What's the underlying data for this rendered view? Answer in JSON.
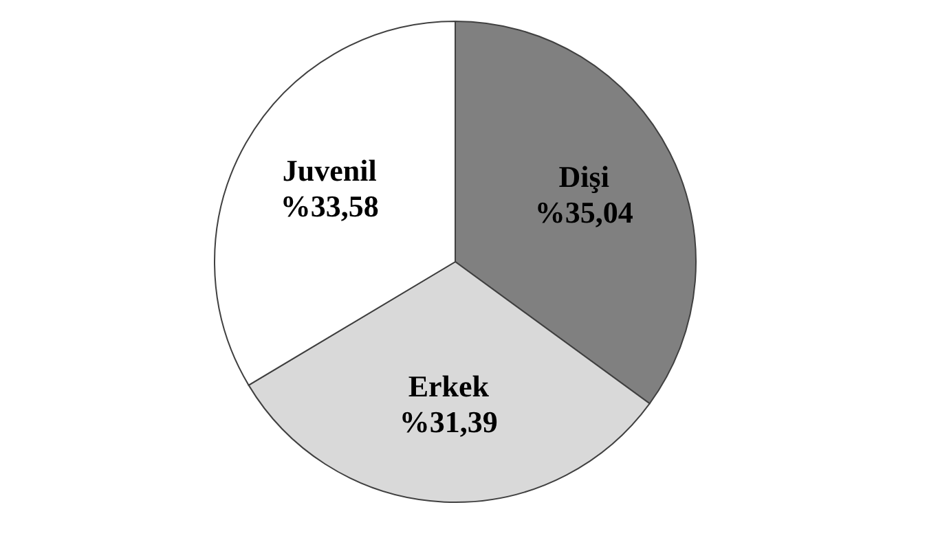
{
  "chart_data": {
    "type": "pie",
    "categories": [
      "Dişi",
      "Erkek",
      "Juvenil"
    ],
    "values": [
      35.04,
      31.39,
      33.58
    ],
    "value_labels": [
      "%35,04",
      "%31,39",
      "%33,58"
    ],
    "colors": [
      "#808080",
      "#d9d9d9",
      "#ffffff"
    ],
    "legend": false
  }
}
